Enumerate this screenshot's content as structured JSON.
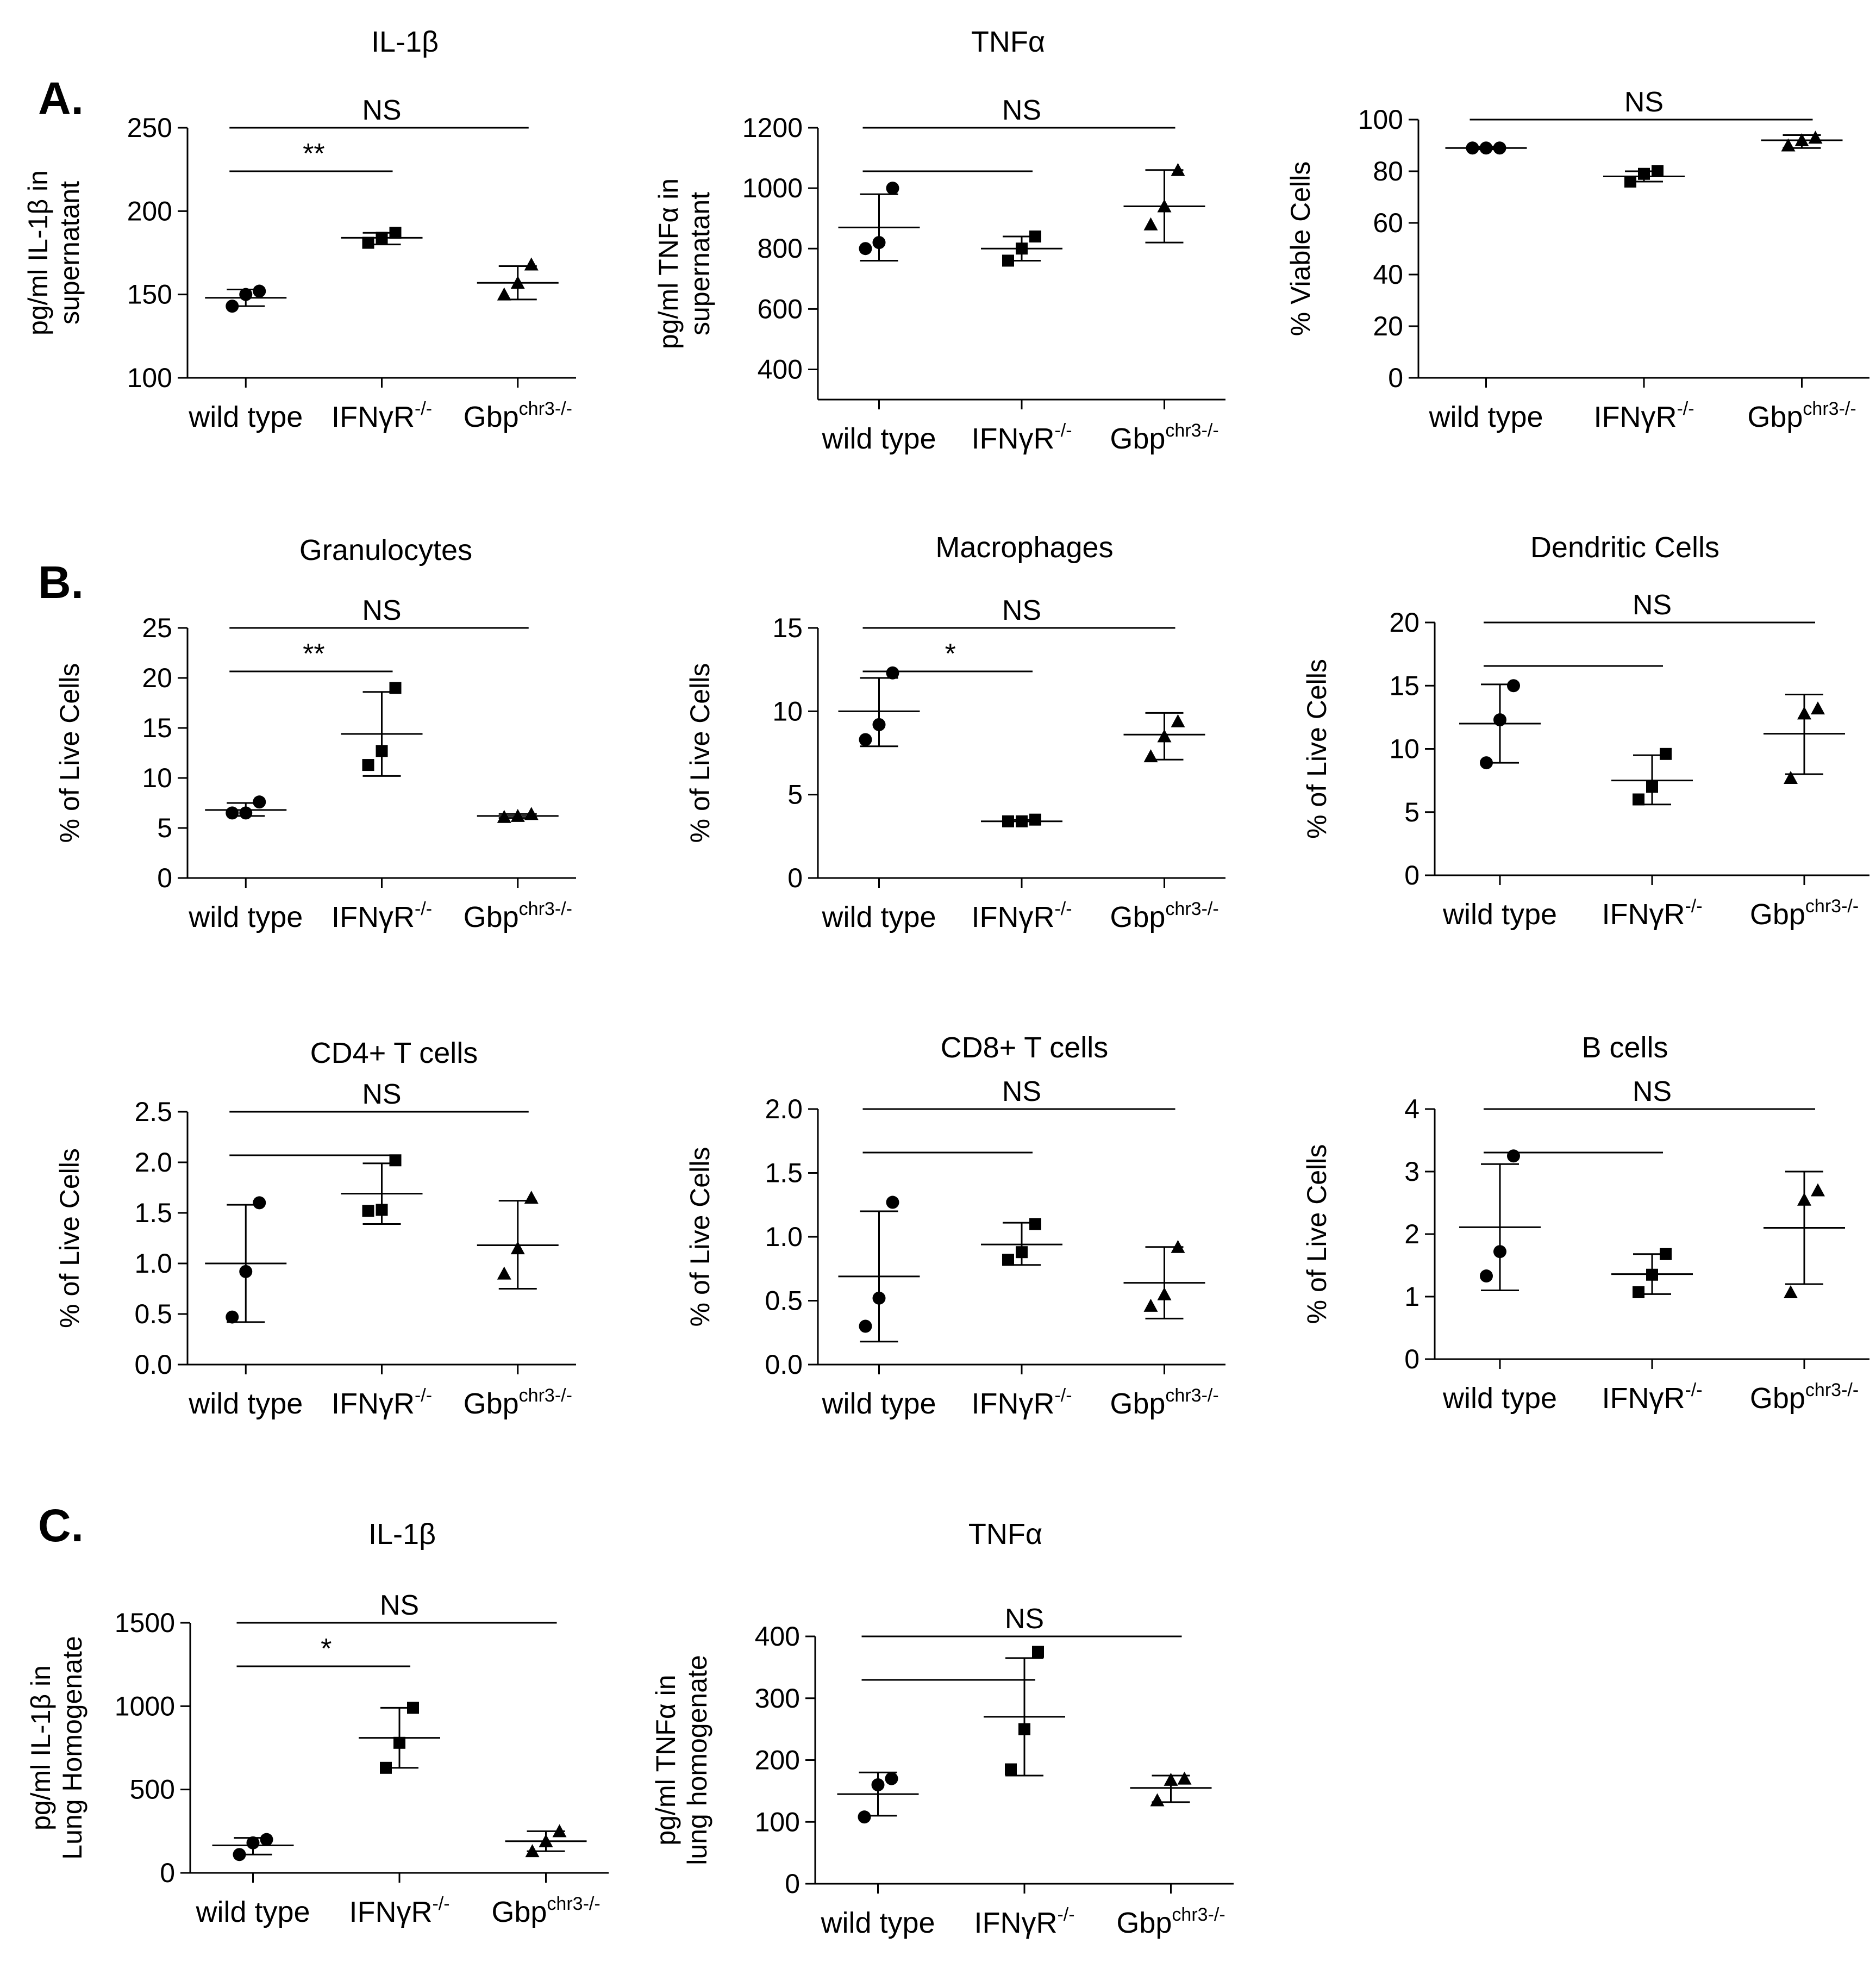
{
  "panel_labels": [
    "A.",
    "B.",
    "C."
  ],
  "chart_data": [
    {
      "id": "il1b_sup",
      "type": "scatter",
      "title": "IL-1β",
      "ylabel": [
        "pg/ml IL-1β in",
        "supernatant"
      ],
      "yticks": [
        100,
        150,
        200,
        250
      ],
      "ylim": [
        100,
        250
      ],
      "categories": [
        {
          "name": "wild type",
          "sup": ""
        },
        {
          "name": "IFNγR",
          "sup": "-/-"
        },
        {
          "name": "Gbp",
          "sup": "chr3-/-"
        }
      ],
      "series": [
        {
          "marker": "circle",
          "points": [
            143,
            150,
            152
          ],
          "mean": 148,
          "sd": [
            143,
            153
          ]
        },
        {
          "marker": "square",
          "points": [
            181,
            184,
            187
          ],
          "mean": 184,
          "sd": [
            180,
            187
          ]
        },
        {
          "marker": "triangle",
          "points": [
            150,
            157,
            168
          ],
          "mean": 157,
          "sd": [
            147,
            167
          ]
        }
      ],
      "sig": [
        {
          "from": 0,
          "to": 2,
          "label": "NS",
          "level": 2
        },
        {
          "from": 0,
          "to": 1,
          "label": "**",
          "level": 1
        }
      ]
    },
    {
      "id": "tnf_sup",
      "type": "scatter",
      "title": "TNFα",
      "ylabel": [
        "pg/ml TNFα in",
        "supernatant"
      ],
      "yticks": [
        400,
        600,
        800,
        1000,
        1200
      ],
      "ylim": [
        300,
        1200
      ],
      "categories": [
        {
          "name": "wild type",
          "sup": ""
        },
        {
          "name": "IFNγR",
          "sup": "-/-"
        },
        {
          "name": "Gbp",
          "sup": "chr3-/-"
        }
      ],
      "series": [
        {
          "marker": "circle",
          "points": [
            800,
            820,
            1000
          ],
          "mean": 870,
          "sd": [
            760,
            980
          ]
        },
        {
          "marker": "square",
          "points": [
            760,
            800,
            840
          ],
          "mean": 800,
          "sd": [
            760,
            840
          ]
        },
        {
          "marker": "triangle",
          "points": [
            880,
            940,
            1060
          ],
          "mean": 940,
          "sd": [
            820,
            1060
          ]
        }
      ],
      "sig": [
        {
          "from": 0,
          "to": 2,
          "label": "NS",
          "level": 2
        },
        {
          "from": 0,
          "to": 1,
          "label": "",
          "level": 1
        }
      ]
    },
    {
      "id": "viable",
      "type": "scatter",
      "title": "",
      "ylabel": [
        "% Viable Cells"
      ],
      "yticks": [
        0,
        20,
        40,
        60,
        80,
        100
      ],
      "ylim": [
        0,
        100
      ],
      "categories": [
        {
          "name": "wild type",
          "sup": ""
        },
        {
          "name": "IFNγR",
          "sup": "-/-"
        },
        {
          "name": "Gbp",
          "sup": "chr3-/-"
        }
      ],
      "series": [
        {
          "marker": "circle",
          "points": [
            89,
            89,
            89
          ],
          "mean": 89,
          "sd": [
            88.5,
            89.5
          ]
        },
        {
          "marker": "square",
          "points": [
            76,
            79,
            80
          ],
          "mean": 78,
          "sd": [
            76,
            80
          ]
        },
        {
          "marker": "triangle",
          "points": [
            90,
            92,
            93
          ],
          "mean": 92,
          "sd": [
            89,
            94
          ]
        }
      ],
      "sig": [
        {
          "from": 0,
          "to": 2,
          "label": "NS",
          "level": 2
        }
      ]
    },
    {
      "id": "gran",
      "type": "scatter",
      "title": "Granulocytes",
      "ylabel": [
        "% of Live Cells"
      ],
      "yticks": [
        0,
        5,
        10,
        15,
        20,
        25
      ],
      "ylim": [
        0,
        25
      ],
      "categories": [
        {
          "name": "wild type",
          "sup": ""
        },
        {
          "name": "IFNγR",
          "sup": "-/-"
        },
        {
          "name": "Gbp",
          "sup": "chr3-/-"
        }
      ],
      "series": [
        {
          "marker": "circle",
          "points": [
            6.5,
            6.5,
            7.6
          ],
          "mean": 6.8,
          "sd": [
            6.2,
            7.5
          ]
        },
        {
          "marker": "square",
          "points": [
            11.3,
            12.7,
            19
          ],
          "mean": 14.4,
          "sd": [
            10.2,
            18.6
          ]
        },
        {
          "marker": "triangle",
          "points": [
            6.1,
            6.2,
            6.4
          ],
          "mean": 6.2,
          "sd": [
            6.0,
            6.4
          ]
        }
      ],
      "sig": [
        {
          "from": 0,
          "to": 2,
          "label": "NS",
          "level": 2
        },
        {
          "from": 0,
          "to": 1,
          "label": "**",
          "level": 1
        }
      ]
    },
    {
      "id": "macro",
      "type": "scatter",
      "title": "Macrophages",
      "ylabel": [
        "% of Live Cells"
      ],
      "yticks": [
        0,
        5,
        10,
        15
      ],
      "ylim": [
        0,
        15
      ],
      "categories": [
        {
          "name": "wild type",
          "sup": ""
        },
        {
          "name": "IFNγR",
          "sup": "-/-"
        },
        {
          "name": "Gbp",
          "sup": "chr3-/-"
        }
      ],
      "series": [
        {
          "marker": "circle",
          "points": [
            8.3,
            9.2,
            12.3
          ],
          "mean": 10,
          "sd": [
            7.9,
            12.0
          ]
        },
        {
          "marker": "square",
          "points": [
            3.4,
            3.4,
            3.5
          ],
          "mean": 3.4,
          "sd": [
            3.4,
            3.5
          ]
        },
        {
          "marker": "triangle",
          "points": [
            7.3,
            8.5,
            9.4
          ],
          "mean": 8.6,
          "sd": [
            7.1,
            9.9
          ]
        }
      ],
      "sig": [
        {
          "from": 0,
          "to": 2,
          "label": "NS",
          "level": 2
        },
        {
          "from": 0,
          "to": 1,
          "label": "*",
          "level": 1
        }
      ]
    },
    {
      "id": "dc",
      "type": "scatter",
      "title": "Dendritic Cells",
      "ylabel": [
        "% of Live Cells"
      ],
      "yticks": [
        0,
        5,
        10,
        15,
        20
      ],
      "ylim": [
        0,
        20
      ],
      "categories": [
        {
          "name": "wild type",
          "sup": ""
        },
        {
          "name": "IFNγR",
          "sup": "-/-"
        },
        {
          "name": "Gbp",
          "sup": "chr3-/-"
        }
      ],
      "series": [
        {
          "marker": "circle",
          "points": [
            8.9,
            12.3,
            15
          ],
          "mean": 12,
          "sd": [
            8.9,
            15.1
          ]
        },
        {
          "marker": "square",
          "points": [
            6,
            7,
            9.6
          ],
          "mean": 7.5,
          "sd": [
            5.6,
            9.5
          ]
        },
        {
          "marker": "triangle",
          "points": [
            7.7,
            12.8,
            13.2
          ],
          "mean": 11.2,
          "sd": [
            8.0,
            14.3
          ]
        }
      ],
      "sig": [
        {
          "from": 0,
          "to": 2,
          "label": "NS",
          "level": 2
        },
        {
          "from": 0,
          "to": 1,
          "label": "",
          "level": 1
        }
      ]
    },
    {
      "id": "cd4",
      "type": "scatter",
      "title": "CD4+ T cells",
      "ylabel": [
        "% of Live Cells"
      ],
      "yticks": [
        0.0,
        0.5,
        1.0,
        1.5,
        2.0,
        2.5
      ],
      "ylim": [
        0,
        2.5
      ],
      "tick_decimals": 1,
      "categories": [
        {
          "name": "wild type",
          "sup": ""
        },
        {
          "name": "IFNγR",
          "sup": "-/-"
        },
        {
          "name": "Gbp",
          "sup": "chr3-/-"
        }
      ],
      "series": [
        {
          "marker": "circle",
          "points": [
            0.47,
            0.92,
            1.6
          ],
          "mean": 1.0,
          "sd": [
            0.42,
            1.58
          ]
        },
        {
          "marker": "square",
          "points": [
            1.52,
            1.53,
            2.02
          ],
          "mean": 1.69,
          "sd": [
            1.39,
            1.99
          ]
        },
        {
          "marker": "triangle",
          "points": [
            0.9,
            1.15,
            1.65
          ],
          "mean": 1.18,
          "sd": [
            0.75,
            1.62
          ]
        }
      ],
      "sig": [
        {
          "from": 0,
          "to": 2,
          "label": "NS",
          "level": 2
        },
        {
          "from": 0,
          "to": 1,
          "label": "",
          "level": 1
        }
      ]
    },
    {
      "id": "cd8",
      "type": "scatter",
      "title": "CD8+ T cells",
      "ylabel": [
        "% of Live Cells"
      ],
      "yticks": [
        0.0,
        0.5,
        1.0,
        1.5,
        2.0
      ],
      "ylim": [
        0,
        2
      ],
      "tick_decimals": 1,
      "categories": [
        {
          "name": "wild type",
          "sup": ""
        },
        {
          "name": "IFNγR",
          "sup": "-/-"
        },
        {
          "name": "Gbp",
          "sup": "chr3-/-"
        }
      ],
      "series": [
        {
          "marker": "circle",
          "points": [
            0.3,
            0.52,
            1.27
          ],
          "mean": 0.69,
          "sd": [
            0.18,
            1.2
          ]
        },
        {
          "marker": "square",
          "points": [
            0.82,
            0.88,
            1.1
          ],
          "mean": 0.94,
          "sd": [
            0.78,
            1.11
          ]
        },
        {
          "marker": "triangle",
          "points": [
            0.46,
            0.55,
            0.92
          ],
          "mean": 0.64,
          "sd": [
            0.36,
            0.92
          ]
        }
      ],
      "sig": [
        {
          "from": 0,
          "to": 2,
          "label": "NS",
          "level": 2
        },
        {
          "from": 0,
          "to": 1,
          "label": "",
          "level": 1
        }
      ]
    },
    {
      "id": "bcells",
      "type": "scatter",
      "title": "B cells",
      "ylabel": [
        "% of Live Cells"
      ],
      "yticks": [
        0,
        1,
        2,
        3,
        4
      ],
      "ylim": [
        0,
        4
      ],
      "categories": [
        {
          "name": "wild type",
          "sup": ""
        },
        {
          "name": "IFNγR",
          "sup": "-/-"
        },
        {
          "name": "Gbp",
          "sup": "chr3-/-"
        }
      ],
      "series": [
        {
          "marker": "circle",
          "points": [
            1.33,
            1.72,
            3.25
          ],
          "mean": 2.11,
          "sd": [
            1.1,
            3.12
          ]
        },
        {
          "marker": "square",
          "points": [
            1.07,
            1.35,
            1.68
          ],
          "mean": 1.36,
          "sd": [
            1.04,
            1.68
          ]
        },
        {
          "marker": "triangle",
          "points": [
            1.07,
            2.55,
            2.7
          ],
          "mean": 2.1,
          "sd": [
            1.2,
            3.0
          ]
        }
      ],
      "sig": [
        {
          "from": 0,
          "to": 2,
          "label": "NS",
          "level": 2
        },
        {
          "from": 0,
          "to": 1,
          "label": "",
          "level": 1
        }
      ]
    },
    {
      "id": "il1b_lung",
      "type": "scatter",
      "title": "IL-1β",
      "ylabel": [
        "pg/ml IL-1β in",
        "Lung Homogenate"
      ],
      "yticks": [
        0,
        500,
        1000,
        1500
      ],
      "ylim": [
        0,
        1500
      ],
      "categories": [
        {
          "name": "wild type",
          "sup": ""
        },
        {
          "name": "IFNγR",
          "sup": "-/-"
        },
        {
          "name": "Gbp",
          "sup": "chr3-/-"
        }
      ],
      "series": [
        {
          "marker": "circle",
          "points": [
            110,
            180,
            200
          ],
          "mean": 165,
          "sd": [
            110,
            210
          ]
        },
        {
          "marker": "square",
          "points": [
            630,
            780,
            990
          ],
          "mean": 810,
          "sd": [
            630,
            990
          ]
        },
        {
          "marker": "triangle",
          "points": [
            130,
            190,
            250
          ],
          "mean": 190,
          "sd": [
            130,
            250
          ]
        }
      ],
      "sig": [
        {
          "from": 0,
          "to": 2,
          "label": "NS",
          "level": 2
        },
        {
          "from": 0,
          "to": 1,
          "label": "*",
          "level": 1
        }
      ]
    },
    {
      "id": "tnf_lung",
      "type": "scatter",
      "title": "TNFα",
      "ylabel": [
        "pg/ml TNFα in",
        "lung homogenate"
      ],
      "yticks": [
        0,
        100,
        200,
        300,
        400
      ],
      "ylim": [
        0,
        400
      ],
      "categories": [
        {
          "name": "wild type",
          "sup": ""
        },
        {
          "name": "IFNγR",
          "sup": "-/-"
        },
        {
          "name": "Gbp",
          "sup": "chr3-/-"
        }
      ],
      "series": [
        {
          "marker": "circle",
          "points": [
            108,
            160,
            170
          ],
          "mean": 145,
          "sd": [
            110,
            180
          ]
        },
        {
          "marker": "square",
          "points": [
            185,
            250,
            375
          ],
          "mean": 270,
          "sd": [
            175,
            365
          ]
        },
        {
          "marker": "triangle",
          "points": [
            135,
            168,
            170
          ],
          "mean": 155,
          "sd": [
            132,
            175
          ]
        }
      ],
      "sig": [
        {
          "from": 0,
          "to": 2,
          "label": "NS",
          "level": 2
        },
        {
          "from": 0,
          "to": 1,
          "label": "",
          "level": 1
        }
      ]
    }
  ]
}
